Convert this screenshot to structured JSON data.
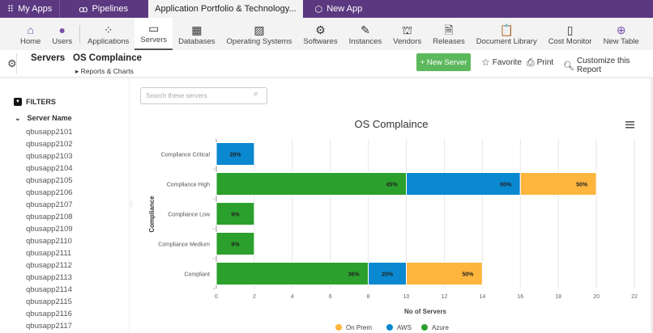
{
  "topbar": {
    "tabs": [
      {
        "label": "My Apps",
        "icon": "grid-icon"
      },
      {
        "label": "Pipelines",
        "icon": "pipeline-icon"
      },
      {
        "label": "Application Portfolio & Technology..."
      },
      {
        "label": "New App",
        "icon": "new-app-icon"
      }
    ]
  },
  "nav": {
    "items": [
      {
        "label": "Home",
        "icon": "home-icon"
      },
      {
        "label": "Users",
        "icon": "user-icon"
      },
      {
        "label": "Applications",
        "icon": "applications-icon"
      },
      {
        "label": "Servers",
        "icon": "monitor-icon"
      },
      {
        "label": "Databases",
        "icon": "database-icon"
      },
      {
        "label": "Operating Systems",
        "icon": "image-icon"
      },
      {
        "label": "Softwares",
        "icon": "gears-icon"
      },
      {
        "label": "Instances",
        "icon": "pin-icon"
      },
      {
        "label": "Vendors",
        "icon": "bank-icon"
      },
      {
        "label": "Releases",
        "icon": "document-icon"
      },
      {
        "label": "Document Library",
        "icon": "clipboard-icon"
      },
      {
        "label": "Cost Monitor",
        "icon": "cost-icon"
      },
      {
        "label": "New Table",
        "icon": "plus-circle-icon"
      }
    ],
    "active": "Servers"
  },
  "header": {
    "table": "Servers",
    "report": "OS Complaince",
    "breadcrumb": "Reports & Charts",
    "new_button": "+ New Server",
    "favorite": "Favorite",
    "print": "Print",
    "customize": "Customize this Report"
  },
  "sidebar": {
    "filters": "FILTERS",
    "group": "Server Name",
    "servers": [
      "qbusapp2101",
      "qbusapp2102",
      "qbusapp2103",
      "qbusapp2104",
      "qbusapp2105",
      "qbusapp2106",
      "qbusapp2107",
      "qbusapp2108",
      "qbusapp2109",
      "qbusapp2110",
      "qbusapp2111",
      "qbusapp2112",
      "qbusapp2113",
      "qbusapp2114",
      "qbusapp2115",
      "qbusapp2116",
      "qbusapp2117"
    ]
  },
  "search": {
    "placeholder": "Search these servers"
  },
  "chart_data": {
    "type": "bar",
    "orientation": "horizontal",
    "stacked": true,
    "title": "OS Complaince",
    "xlabel": "No of Servers",
    "ylabel": "Compliance",
    "categories": [
      "Compliance Critical",
      "Compliance High",
      "Compliance Low",
      "Compliance Medium",
      "Compliant"
    ],
    "xlim": [
      0,
      22
    ],
    "xticks": [
      0,
      2,
      4,
      6,
      8,
      10,
      12,
      14,
      16,
      18,
      20,
      22
    ],
    "grid": true,
    "legend": "bottom",
    "series": [
      {
        "name": "Azure",
        "color": "#2ca02c",
        "values": [
          0,
          10,
          2,
          2,
          8
        ],
        "labels": [
          "",
          "45%",
          "9%",
          "9%",
          "36%"
        ]
      },
      {
        "name": "AWS",
        "color": "#0a88d0",
        "values": [
          2,
          6,
          0,
          0,
          2
        ],
        "labels": [
          "20%",
          "60%",
          "",
          "",
          "20%"
        ]
      },
      {
        "name": "On Prem",
        "color": "#fdb53e",
        "values": [
          0,
          4,
          0,
          0,
          4
        ],
        "labels": [
          "",
          "50%",
          "",
          "",
          "50%"
        ]
      }
    ],
    "legend_order": [
      "On Prem",
      "AWS",
      "Azure"
    ]
  }
}
